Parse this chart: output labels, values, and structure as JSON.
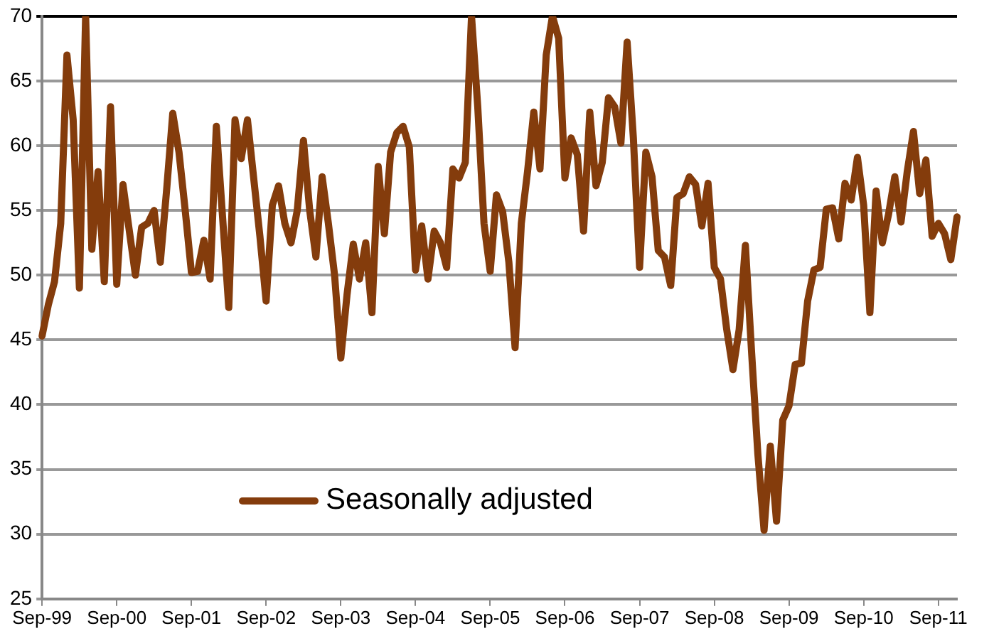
{
  "chart_data": {
    "type": "line",
    "categories": [
      "Sep-99",
      null,
      null,
      null,
      null,
      null,
      null,
      null,
      null,
      null,
      null,
      null,
      "Sep-00",
      null,
      null,
      null,
      null,
      null,
      null,
      null,
      null,
      null,
      null,
      null,
      "Sep-01",
      null,
      null,
      null,
      null,
      null,
      null,
      null,
      null,
      null,
      null,
      null,
      "Sep-02",
      null,
      null,
      null,
      null,
      null,
      null,
      null,
      null,
      null,
      null,
      null,
      "Sep-03",
      null,
      null,
      null,
      null,
      null,
      null,
      null,
      null,
      null,
      null,
      null,
      "Sep-04",
      null,
      null,
      null,
      null,
      null,
      null,
      null,
      null,
      null,
      null,
      null,
      "Sep-05",
      null,
      null,
      null,
      null,
      null,
      null,
      null,
      null,
      null,
      null,
      null,
      "Sep-06",
      null,
      null,
      null,
      null,
      null,
      null,
      null,
      null,
      null,
      null,
      null,
      "Sep-07",
      null,
      null,
      null,
      null,
      null,
      null,
      null,
      null,
      null,
      null,
      null,
      "Sep-08",
      null,
      null,
      null,
      null,
      null,
      null,
      null,
      null,
      null,
      null,
      null,
      "Sep-09",
      null,
      null,
      null,
      null,
      null,
      null,
      null,
      null,
      null,
      null,
      null,
      "Sep-10",
      null,
      null,
      null,
      null,
      null,
      null,
      null,
      null,
      null,
      null,
      null,
      "Sep-11",
      null,
      null,
      null
    ],
    "series": [
      {
        "name": "Seasonally adjusted",
        "color": "#843c0c",
        "values": [
          45.3,
          47.7,
          49.5,
          54,
          67,
          62,
          49,
          70,
          52,
          58,
          49.5,
          63,
          49.3,
          57,
          53.5,
          50,
          53.7,
          54,
          55,
          51,
          56.5,
          62.5,
          59.5,
          55,
          50.2,
          50.3,
          52.7,
          49.7,
          61.5,
          54.5,
          47.5,
          62,
          59,
          62,
          57.5,
          53,
          48,
          55.4,
          56.9,
          54,
          52.5,
          55,
          60.4,
          55,
          51.4,
          57.6,
          54,
          50,
          43.6,
          48.5,
          52.4,
          49.7,
          52.5,
          47.1,
          58.4,
          53.2,
          59.5,
          61,
          61.5,
          59.9,
          50.4,
          53.8,
          49.7,
          53.4,
          52.5,
          50.6,
          58.2,
          57.5,
          58.7,
          70,
          63,
          54,
          50.3,
          56.2,
          54.9,
          51,
          44.4,
          54,
          58,
          62.6,
          58.2,
          67,
          70,
          68.3,
          57.5,
          60.6,
          59.3,
          53.4,
          62.6,
          56.9,
          58.7,
          63.7,
          63,
          60.2,
          68,
          60.6,
          50.6,
          59.5,
          57.6,
          51.9,
          51.4,
          49.2,
          56,
          56.3,
          57.6,
          57,
          53.8,
          57.1,
          50.6,
          49.7,
          45.8,
          42.7,
          45.8,
          52.3,
          44,
          36.2,
          30.3,
          36.8,
          31,
          38.8,
          39.9,
          43.1,
          43.2,
          48,
          50.4,
          50.6,
          55.1,
          55.2,
          52.8,
          57.1,
          55.8,
          59.1,
          55.4,
          47.1,
          56.5,
          52.5,
          54.7,
          57.6,
          54.1,
          58,
          61.1,
          56.3,
          58.9,
          53,
          54,
          53.2,
          51.2,
          54.5
        ]
      }
    ],
    "ylim": [
      25,
      70
    ],
    "yticks": [
      25,
      30,
      35,
      40,
      45,
      50,
      55,
      60,
      65,
      70
    ],
    "grid": "y",
    "legend": "bottom left",
    "marker": "none",
    "line_style": "solid"
  }
}
